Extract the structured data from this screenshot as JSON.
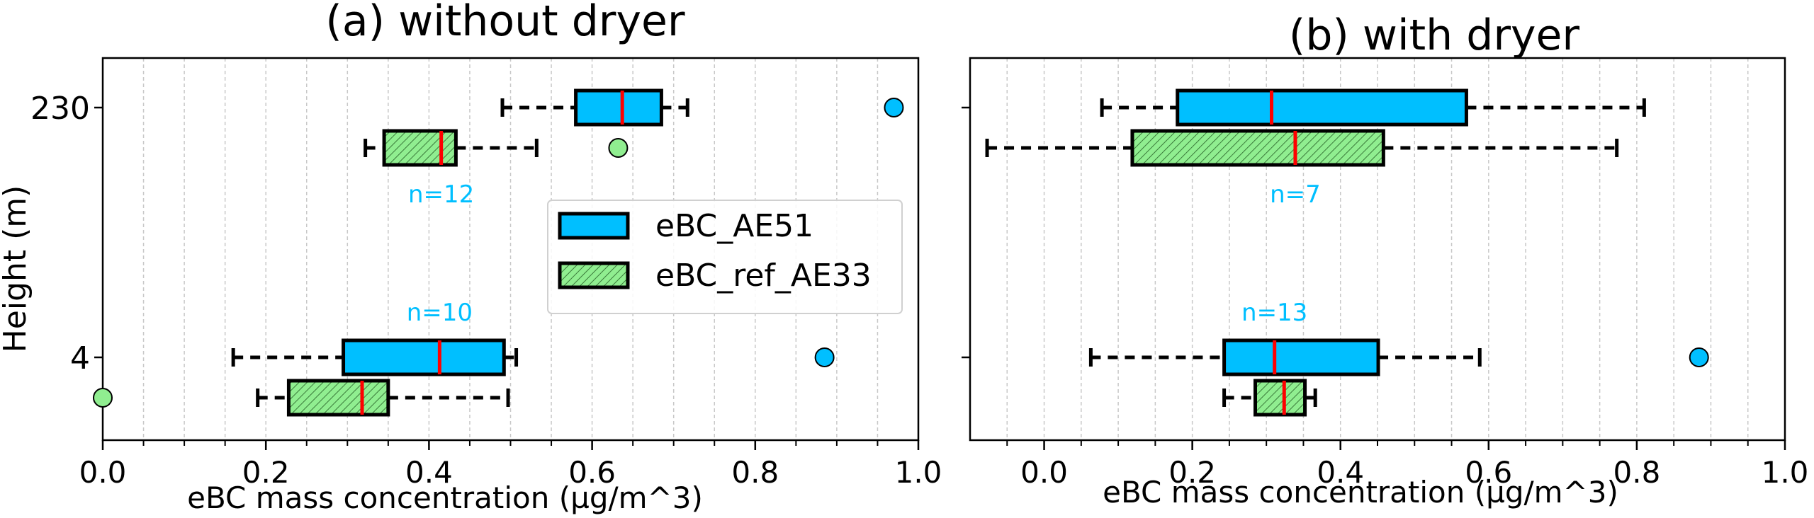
{
  "chart_data": [
    {
      "type": "boxplot",
      "title": "(a) without dryer",
      "xlabel": "eBC mass concentration (µg/m^3)",
      "ylabel": "Height (m)",
      "xlim": [
        0.0,
        1.0
      ],
      "xticks": [
        0.0,
        0.2,
        0.4,
        0.6,
        0.8,
        1.0
      ],
      "xtick_labels": [
        "0.0",
        "0.2",
        "0.4",
        "0.6",
        "0.8",
        "1.0"
      ],
      "categories": [
        "230",
        "4"
      ],
      "grid": "vertical dashed",
      "legend_position": "center",
      "series": [
        {
          "name": "eBC_AE51",
          "boxes": [
            {
              "height": "230",
              "whislo": 0.49,
              "q1": 0.58,
              "med": 0.637,
              "q3": 0.685,
              "whishi": 0.717,
              "fliers": [
                0.97
              ]
            },
            {
              "height": "4",
              "whislo": 0.16,
              "q1": 0.295,
              "med": 0.413,
              "q3": 0.492,
              "whishi": 0.507,
              "fliers": [
                0.885
              ]
            }
          ]
        },
        {
          "name": "eBC_ref_AE33",
          "boxes": [
            {
              "height": "230",
              "whislo": 0.322,
              "q1": 0.345,
              "med": 0.415,
              "q3": 0.433,
              "whishi": 0.532,
              "fliers": [
                0.632
              ]
            },
            {
              "height": "4",
              "whislo": 0.19,
              "q1": 0.228,
              "med": 0.318,
              "q3": 0.35,
              "whishi": 0.497,
              "fliers": [
                0.0
              ]
            }
          ]
        }
      ],
      "annotations": [
        {
          "text": "n=12",
          "height": "230"
        },
        {
          "text": "n=10",
          "height": "4"
        }
      ]
    },
    {
      "type": "boxplot",
      "title": "(b) with dryer",
      "xlabel": "eBC mass concentration (µg/m^3)",
      "ylabel": "",
      "xlim": [
        -0.1,
        1.0
      ],
      "xticks": [
        0.0,
        0.2,
        0.4,
        0.6,
        0.8,
        1.0
      ],
      "xtick_labels": [
        "0.0",
        "0.2",
        "0.4",
        "0.6",
        "0.8",
        "1.0"
      ],
      "categories": [
        "230",
        "4"
      ],
      "grid": "vertical dashed",
      "series": [
        {
          "name": "eBC_AE51",
          "boxes": [
            {
              "height": "230",
              "whislo": 0.078,
              "q1": 0.18,
              "med": 0.307,
              "q3": 0.57,
              "whishi": 0.81,
              "fliers": []
            },
            {
              "height": "4",
              "whislo": 0.063,
              "q1": 0.243,
              "med": 0.311,
              "q3": 0.451,
              "whishi": 0.588,
              "fliers": [
                0.884
              ]
            }
          ]
        },
        {
          "name": "eBC_ref_AE33",
          "boxes": [
            {
              "height": "230",
              "whislo": -0.077,
              "q1": 0.119,
              "med": 0.339,
              "q3": 0.458,
              "whishi": 0.773,
              "fliers": []
            },
            {
              "height": "4",
              "whislo": 0.243,
              "q1": 0.285,
              "med": 0.324,
              "q3": 0.352,
              "whishi": 0.366,
              "fliers": []
            }
          ]
        }
      ],
      "annotations": [
        {
          "text": "n=7",
          "height": "230"
        },
        {
          "text": "n=13",
          "height": "4"
        }
      ]
    }
  ],
  "legend": {
    "items": [
      {
        "label": "eBC_AE51"
      },
      {
        "label": "eBC_ref_AE33"
      }
    ]
  },
  "colors": {
    "ae51": "#00bfff",
    "ae33": "#90ee90",
    "median": "#ff0000",
    "annotation": "#00bfff",
    "edge": "#000000"
  }
}
